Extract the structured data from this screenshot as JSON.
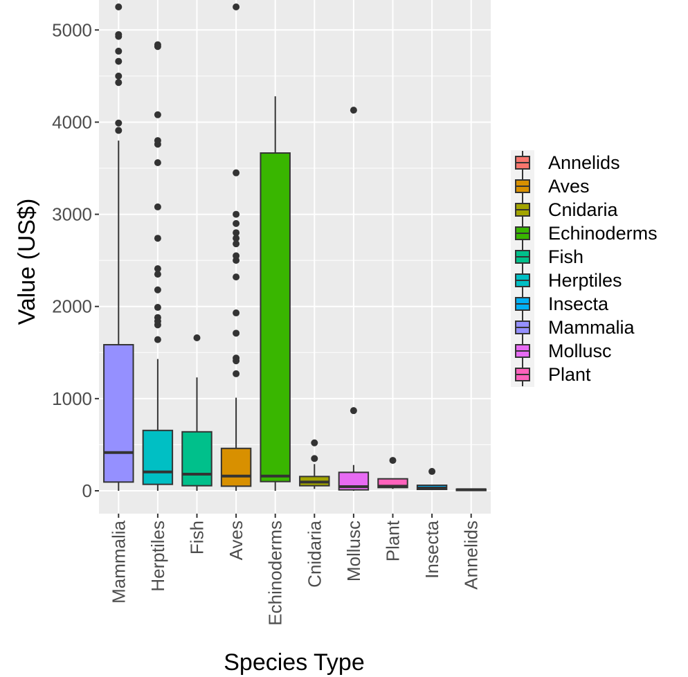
{
  "chart_data": {
    "type": "boxplot",
    "title": "",
    "xlabel": "Species Type",
    "ylabel": "Value (US$)",
    "ylim": [
      -250,
      5250
    ],
    "yticks": [
      0,
      1000,
      2000,
      3000,
      4000,
      5000
    ],
    "yticks_labels": [
      "0",
      "1000",
      "2000",
      "3000",
      "4000",
      "5000"
    ],
    "grid": true,
    "legend_position": "right",
    "categories": [
      "Mammalia",
      "Herptiles",
      "Fish",
      "Aves",
      "Echinoderms",
      "Cnidaria",
      "Mollusc",
      "Plant",
      "Insecta",
      "Annelids"
    ],
    "boxes": [
      {
        "category": "Mammalia",
        "color": "#9590FF",
        "q1": 95,
        "median": 415,
        "q3": 1585,
        "whisker_low": 0,
        "whisker_high": 3800,
        "outliers": [
          3910,
          3990,
          4430,
          4500,
          4660,
          4770,
          4930,
          4950,
          5250
        ]
      },
      {
        "category": "Herptiles",
        "color": "#00BFC4",
        "q1": 70,
        "median": 205,
        "q3": 655,
        "whisker_low": 0,
        "whisker_high": 1430,
        "outliers": [
          1640,
          1800,
          1840,
          1880,
          1990,
          2180,
          2350,
          2410,
          2740,
          3080,
          3560,
          3760,
          3800,
          4080,
          4820,
          4840
        ]
      },
      {
        "category": "Fish",
        "color": "#00C08B",
        "q1": 55,
        "median": 180,
        "q3": 640,
        "whisker_low": 0,
        "whisker_high": 1230,
        "outliers": [
          1660
        ]
      },
      {
        "category": "Aves",
        "color": "#D89000",
        "q1": 50,
        "median": 160,
        "q3": 460,
        "whisker_low": 0,
        "whisker_high": 1010,
        "outliers": [
          1270,
          1410,
          1440,
          1710,
          1930,
          2320,
          2500,
          2550,
          2680,
          2740,
          2800,
          2900,
          3000,
          3450,
          5250
        ]
      },
      {
        "category": "Echinoderms",
        "color": "#39B600",
        "q1": 100,
        "median": 160,
        "q3": 3665,
        "whisker_low": 0,
        "whisker_high": 4280,
        "outliers": []
      },
      {
        "category": "Cnidaria",
        "color": "#A3A500",
        "q1": 55,
        "median": 95,
        "q3": 155,
        "whisker_low": 20,
        "whisker_high": 290,
        "outliers": [
          350,
          520
        ]
      },
      {
        "category": "Mollusc",
        "color": "#E76BF3",
        "q1": 10,
        "median": 45,
        "q3": 200,
        "whisker_low": 0,
        "whisker_high": 280,
        "outliers": [
          870,
          4130
        ]
      },
      {
        "category": "Plant",
        "color": "#FF62BC",
        "q1": 35,
        "median": 50,
        "q3": 130,
        "whisker_low": 20,
        "whisker_high": 130,
        "outliers": [
          330
        ]
      },
      {
        "category": "Insecta",
        "color": "#00B0F6",
        "q1": 15,
        "median": 30,
        "q3": 60,
        "whisker_low": 10,
        "whisker_high": 60,
        "outliers": [
          210
        ]
      },
      {
        "category": "Annelids",
        "color": "#F8766D",
        "q1": 8,
        "median": 12,
        "q3": 18,
        "whisker_low": 5,
        "whisker_high": 20,
        "outliers": []
      }
    ],
    "legend": [
      {
        "name": "Annelids",
        "color": "#F8766D"
      },
      {
        "name": "Aves",
        "color": "#D89000"
      },
      {
        "name": "Cnidaria",
        "color": "#A3A500"
      },
      {
        "name": "Echinoderms",
        "color": "#39B600"
      },
      {
        "name": "Fish",
        "color": "#00C08B"
      },
      {
        "name": "Herptiles",
        "color": "#00BFC4"
      },
      {
        "name": "Insecta",
        "color": "#00B0F6"
      },
      {
        "name": "Mammalia",
        "color": "#9590FF"
      },
      {
        "name": "Mollusc",
        "color": "#E76BF3"
      },
      {
        "name": "Plant",
        "color": "#FF62BC"
      }
    ],
    "colors": {
      "panel_bg": "#EBEBEB",
      "grid_major": "#FFFFFF",
      "outline": "#333333",
      "point": "#333333"
    }
  }
}
